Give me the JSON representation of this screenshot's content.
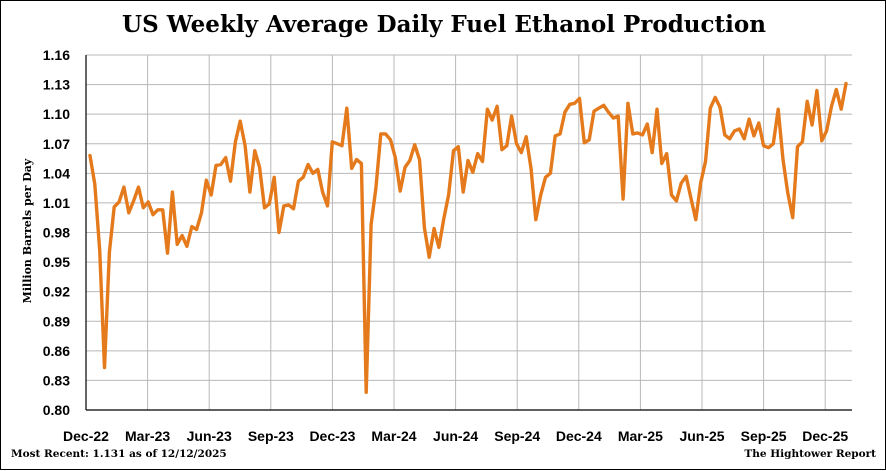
{
  "chart_data": {
    "type": "line",
    "title": "US Weekly Average Daily Fuel Ethanol Production",
    "ylabel": "Million Barrels per Day",
    "xlabel": "",
    "ylim": [
      0.8,
      1.16
    ],
    "yticks": [
      "0.80",
      "0.83",
      "0.86",
      "0.89",
      "0.92",
      "0.95",
      "0.98",
      "1.01",
      "1.04",
      "1.07",
      "1.10",
      "1.13",
      "1.16"
    ],
    "xticks": [
      "Dec-22",
      "Mar-23",
      "Jun-23",
      "Sep-23",
      "Dec-23",
      "Mar-24",
      "Jun-24",
      "Sep-24",
      "Dec-24",
      "Mar-25",
      "Jun-25",
      "Sep-25",
      "Dec-25"
    ],
    "grid": true,
    "line_color": "#e47a1b",
    "series": [
      {
        "values": [
          1.058,
          1.029,
          0.962,
          0.843,
          0.96,
          1.006,
          1.011,
          1.026,
          1.0,
          1.012,
          1.026,
          1.005,
          1.011,
          0.998,
          1.003,
          1.003,
          0.959,
          1.021,
          0.968,
          0.977,
          0.966,
          0.986,
          0.983,
          1.0,
          1.033,
          1.018,
          1.048,
          1.049,
          1.056,
          1.032,
          1.072,
          1.093,
          1.068,
          1.021,
          1.063,
          1.046,
          1.005,
          1.009,
          1.036,
          0.98,
          1.007,
          1.008,
          1.004,
          1.032,
          1.036,
          1.049,
          1.04,
          1.044,
          1.021,
          1.007,
          1.072,
          1.07,
          1.068,
          1.106,
          1.045,
          1.054,
          1.05,
          0.818,
          0.988,
          1.025,
          1.08,
          1.08,
          1.074,
          1.056,
          1.022,
          1.046,
          1.053,
          1.069,
          1.054,
          0.985,
          0.955,
          0.984,
          0.965,
          0.994,
          1.018,
          1.063,
          1.067,
          1.021,
          1.053,
          1.041,
          1.06,
          1.052,
          1.105,
          1.094,
          1.108,
          1.064,
          1.068,
          1.098,
          1.07,
          1.061,
          1.077,
          1.045,
          0.993,
          1.018,
          1.036,
          1.04,
          1.078,
          1.08,
          1.102,
          1.11,
          1.111,
          1.116,
          1.071,
          1.074,
          1.103,
          1.106,
          1.109,
          1.102,
          1.096,
          1.098,
          1.014,
          1.111,
          1.08,
          1.081,
          1.079,
          1.09,
          1.061,
          1.105,
          1.05,
          1.06,
          1.018,
          1.012,
          1.03,
          1.037,
          1.015,
          0.993,
          1.03,
          1.052,
          1.106,
          1.117,
          1.107,
          1.079,
          1.075,
          1.083,
          1.085,
          1.075,
          1.095,
          1.078,
          1.091,
          1.068,
          1.066,
          1.07,
          1.105,
          1.054,
          1.02,
          0.995,
          1.067,
          1.072,
          1.113,
          1.089,
          1.124,
          1.073,
          1.083,
          1.108,
          1.125,
          1.105,
          1.131
        ]
      }
    ]
  },
  "footer": {
    "left": "Most Recent: 1.131 as of 12/12/2025",
    "right": "The Hightower Report"
  }
}
